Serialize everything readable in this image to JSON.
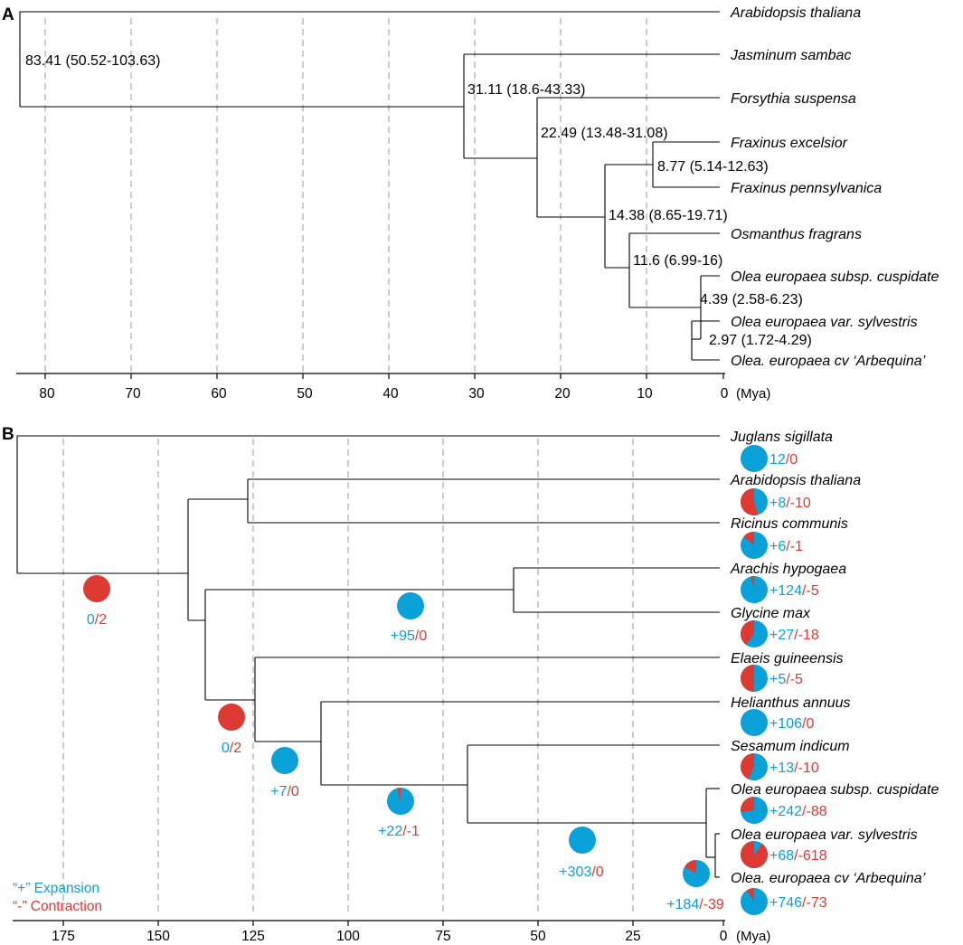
{
  "colors": {
    "expansion": "#0aa0d8",
    "contraction": "#dc3a33",
    "line": "#000000",
    "grid": "#bfbfbf"
  },
  "axis_unit": "(Mya)",
  "panel_a": {
    "label": "A",
    "axis_ticks": [
      "80",
      "70",
      "60",
      "50",
      "40",
      "30",
      "20",
      "10",
      "0"
    ],
    "species": [
      "Arabidopsis thaliana",
      "Jasminum sambac",
      "Forsythia suspensa",
      "Fraxinus excelsior",
      "Fraxinus pennsylvanica",
      "Osmanthus fragrans",
      "Olea europaea subsp. cuspidate",
      "Olea europaea var. sylvestris",
      "Olea. europaea cv ‘Arbequina’"
    ],
    "node_ages": [
      "83.41 (50.52-103.63)",
      "31.11 (18.6-43.33)",
      "22.49 (13.48-31.08)",
      "8.77 (5.14-12.63)",
      "14.38 (8.65-19.71)",
      "11.6 (6.99-16)",
      "4.39 (2.58-6.23)",
      "2.97 (1.72-4.29)"
    ]
  },
  "panel_b": {
    "label": "B",
    "axis_ticks": [
      "175",
      "150",
      "125",
      "100",
      "75",
      "50",
      "25",
      "0"
    ],
    "species": [
      "Juglans sigillata",
      "Arabidopsis thaliana",
      "Ricinus communis",
      "Arachis hypogaea",
      "Glycine max",
      "Elaeis guineensis",
      "Helianthus annuus",
      "Sesamum indicum",
      "Olea europaea subsp. cuspidate",
      "Olea europaea var. sylvestris",
      "Olea. europaea cv ‘Arbequina’"
    ],
    "tip_changes": [
      {
        "gain": "12",
        "sep": "/",
        "loss": "0",
        "contraction_fraction": 0.0
      },
      {
        "gain": "+8",
        "sep": "/",
        "loss": "-10",
        "contraction_fraction": 0.55
      },
      {
        "gain": "+6",
        "sep": "/",
        "loss": "-1",
        "contraction_fraction": 0.14
      },
      {
        "gain": "+124",
        "sep": "/",
        "loss": "-5",
        "contraction_fraction": 0.04
      },
      {
        "gain": "+27",
        "sep": "/",
        "loss": "-18",
        "contraction_fraction": 0.4
      },
      {
        "gain": "+5",
        "sep": "/",
        "loss": "-5",
        "contraction_fraction": 0.5
      },
      {
        "gain": "+106",
        "sep": "/",
        "loss": "0",
        "contraction_fraction": 0.0
      },
      {
        "gain": "+13",
        "sep": "/",
        "loss": "-10",
        "contraction_fraction": 0.43
      },
      {
        "gain": "+242",
        "sep": "/",
        "loss": "-88",
        "contraction_fraction": 0.27
      },
      {
        "gain": "+68",
        "sep": "/",
        "loss": "-618",
        "contraction_fraction": 0.9
      },
      {
        "gain": "+746",
        "sep": "/",
        "loss": "-73",
        "contraction_fraction": 0.09
      }
    ],
    "internal_changes": [
      {
        "gain": "0",
        "sep": "/",
        "loss": "2",
        "contraction_fraction": 1.0
      },
      {
        "gain": "+95",
        "sep": "/",
        "loss": "0",
        "contraction_fraction": 0.0
      },
      {
        "gain": "0",
        "sep": "/",
        "loss": "2",
        "contraction_fraction": 1.0
      },
      {
        "gain": "+7",
        "sep": "/",
        "loss": "0",
        "contraction_fraction": 0.0
      },
      {
        "gain": "+22",
        "sep": "/",
        "loss": "-1",
        "contraction_fraction": 0.04
      },
      {
        "gain": "+303",
        "sep": "/",
        "loss": "0",
        "contraction_fraction": 0.0
      },
      {
        "gain": "+184",
        "sep": "/",
        "loss": "-39",
        "contraction_fraction": 0.17
      }
    ],
    "legend": {
      "expansion": "“+” Expansion",
      "contraction": "“-” Contraction"
    }
  }
}
